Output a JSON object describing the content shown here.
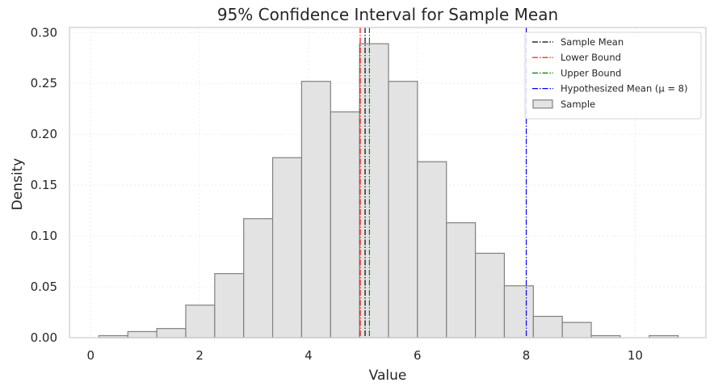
{
  "chart_data": {
    "type": "bar",
    "title": "95% Confidence Interval for Sample Mean",
    "xlabel": "Value",
    "ylabel": "Density",
    "xlim": [
      -0.39,
      11.3
    ],
    "ylim": [
      0,
      0.305
    ],
    "xticks": [
      0,
      2,
      4,
      6,
      8,
      10
    ],
    "yticks": [
      0.0,
      0.05,
      0.1,
      0.15,
      0.2,
      0.25,
      0.3
    ],
    "ytick_labels": [
      "0.00",
      "0.05",
      "0.10",
      "0.15",
      "0.20",
      "0.25",
      "0.30"
    ],
    "grid": true,
    "legend_position": "top-right",
    "histogram": {
      "name": "Sample",
      "bin_start": 0.15,
      "bin_width": 0.532,
      "values": [
        0.002,
        0.006,
        0.009,
        0.032,
        0.063,
        0.117,
        0.177,
        0.252,
        0.222,
        0.289,
        0.252,
        0.173,
        0.113,
        0.083,
        0.051,
        0.021,
        0.015,
        0.002,
        0.0,
        0.002
      ],
      "fill": "#e3e3e3",
      "edge": "#808080"
    },
    "vlines": [
      {
        "name": "Sample Mean",
        "x": 5.04,
        "color": "#000000"
      },
      {
        "name": "Lower Bound",
        "x": 4.95,
        "color": "#ff0000"
      },
      {
        "name": "Upper Bound",
        "x": 5.12,
        "color": "#008000"
      },
      {
        "name": "Hypothesized Mean (μ = 8)",
        "x": 8.0,
        "color": "#0000ff"
      }
    ]
  }
}
